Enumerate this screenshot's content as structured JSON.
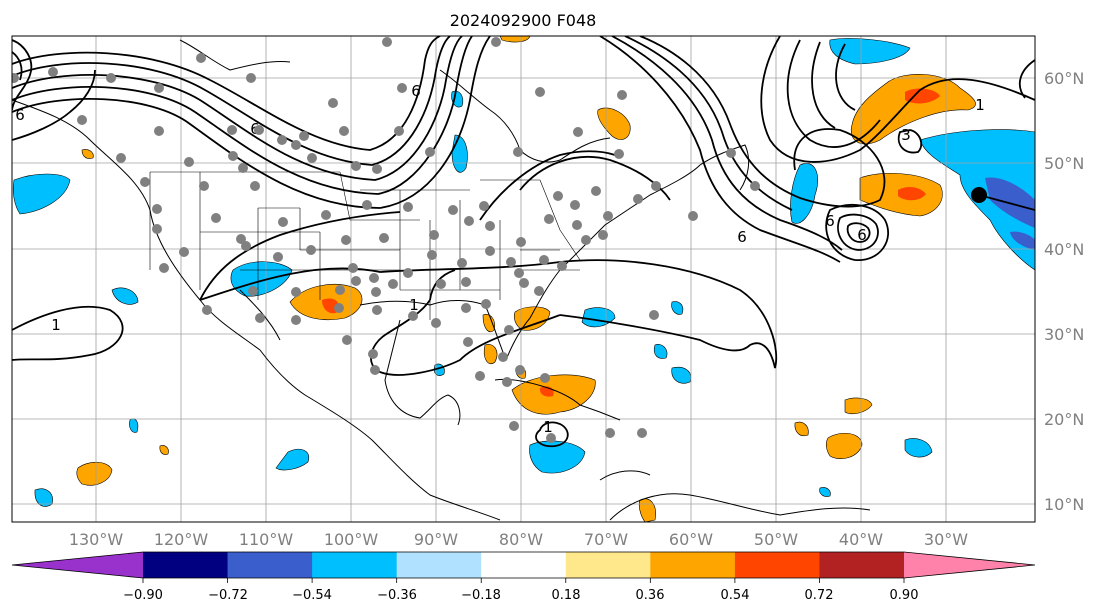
{
  "title": "2024092900 F048",
  "lon_labels": [
    "130°W",
    "120°W",
    "110°W",
    "100°W",
    "90°W",
    "80°W",
    "70°W",
    "60°W",
    "50°W",
    "40°W",
    "30°W"
  ],
  "lat_labels": [
    "60°N",
    "50°N",
    "40°N",
    "30°N",
    "20°N",
    "10°N"
  ],
  "colorbar": {
    "colors": [
      "#9932cc",
      "#000080",
      "#3a5fcd",
      "#00bfff",
      "#b0e2ff",
      "#ffffff",
      "#ffe78c",
      "#ffa500",
      "#ff4500",
      "#b22222",
      "#ff82ab"
    ],
    "tick_labels": [
      "−0.90",
      "−0.72",
      "−0.54",
      "−0.36",
      "−0.18",
      "0.18",
      "0.36",
      "0.54",
      "0.72",
      "0.90"
    ]
  },
  "contour_labels": [
    "1",
    "1",
    "1",
    "3",
    "6",
    "6",
    "6",
    "6",
    "6",
    "6",
    "1"
  ],
  "colors": {
    "positive": "#ffa500",
    "negative": "#00bfff",
    "station": "#808080",
    "contour": "#000000"
  }
}
